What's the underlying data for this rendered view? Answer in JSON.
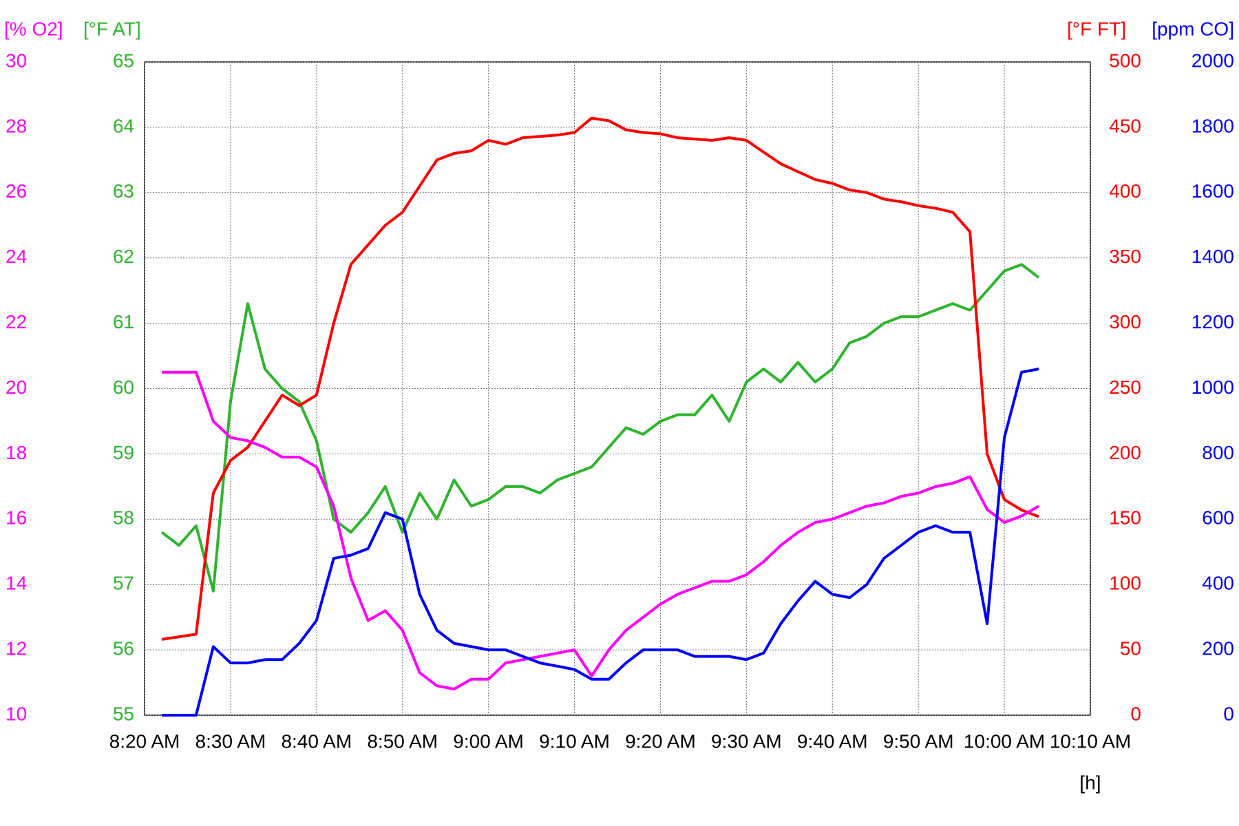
{
  "chart_data": {
    "type": "line",
    "x_axis_label": "[h]",
    "xlim": [
      "8:20 AM",
      "10:10 AM"
    ],
    "xticks": [
      "8:20 AM",
      "8:30 AM",
      "8:40 AM",
      "8:50 AM",
      "9:00 AM",
      "9:10 AM",
      "9:20 AM",
      "9:30 AM",
      "9:40 AM",
      "9:50 AM",
      "10:00 AM",
      "10:10 AM"
    ],
    "grid": true,
    "y_axes": [
      {
        "label": "[% O2]",
        "color": "#ff00ff",
        "ylim": [
          10,
          30
        ],
        "yticks": [
          10,
          12,
          14,
          16,
          18,
          20,
          22,
          24,
          26,
          28,
          30
        ]
      },
      {
        "label": "[°F AT]",
        "color": "#2db52d",
        "ylim": [
          55,
          65
        ],
        "yticks": [
          55,
          56,
          57,
          58,
          59,
          60,
          61,
          62,
          63,
          64,
          65
        ]
      },
      {
        "label": "[°F FT]",
        "color": "#ff0000",
        "ylim": [
          0,
          500
        ],
        "yticks": [
          0,
          50,
          100,
          150,
          200,
          250,
          300,
          350,
          400,
          450,
          500
        ]
      },
      {
        "label": "[ppm CO]",
        "color": "#0000ff",
        "ylim": [
          0,
          2000
        ],
        "yticks": [
          0,
          200,
          400,
          600,
          800,
          1000,
          1200,
          1400,
          1600,
          1800,
          2000
        ]
      }
    ],
    "x": [
      "8:22 AM",
      "8:24 AM",
      "8:26 AM",
      "8:28 AM",
      "8:30 AM",
      "8:32 AM",
      "8:34 AM",
      "8:36 AM",
      "8:38 AM",
      "8:40 AM",
      "8:42 AM",
      "8:44 AM",
      "8:46 AM",
      "8:48 AM",
      "8:50 AM",
      "8:52 AM",
      "8:54 AM",
      "8:56 AM",
      "8:58 AM",
      "9:00 AM",
      "9:02 AM",
      "9:04 AM",
      "9:06 AM",
      "9:08 AM",
      "9:10 AM",
      "9:12 AM",
      "9:14 AM",
      "9:16 AM",
      "9:18 AM",
      "9:20 AM",
      "9:22 AM",
      "9:24 AM",
      "9:26 AM",
      "9:28 AM",
      "9:30 AM",
      "9:32 AM",
      "9:34 AM",
      "9:36 AM",
      "9:38 AM",
      "9:40 AM",
      "9:42 AM",
      "9:44 AM",
      "9:46 AM",
      "9:48 AM",
      "9:50 AM",
      "9:52 AM",
      "9:54 AM",
      "9:56 AM",
      "9:58 AM",
      "10:00 AM",
      "10:02 AM",
      "10:04 AM"
    ],
    "series": [
      {
        "color": "#2db52d",
        "axis": 1,
        "values": [
          57.8,
          57.6,
          57.9,
          56.9,
          59.8,
          61.3,
          60.3,
          60.0,
          59.8,
          59.2,
          58.0,
          57.8,
          58.1,
          58.5,
          57.8,
          58.4,
          58.0,
          58.6,
          58.2,
          58.3,
          58.5,
          58.5,
          58.4,
          58.6,
          58.7,
          58.8,
          59.1,
          59.4,
          59.3,
          59.5,
          59.6,
          59.6,
          59.9,
          59.5,
          60.1,
          60.3,
          60.1,
          60.4,
          60.1,
          60.3,
          60.7,
          60.8,
          61.0,
          61.1,
          61.1,
          61.2,
          61.3,
          61.2,
          61.5,
          61.8,
          61.9,
          61.7
        ]
      },
      {
        "color": "#ff0000",
        "axis": 2,
        "values": [
          58,
          60,
          62,
          170,
          195,
          205,
          225,
          245,
          237,
          245,
          300,
          345,
          360,
          375,
          385,
          405,
          425,
          430,
          432,
          440,
          437,
          442,
          443,
          444,
          446,
          457,
          455,
          448,
          446,
          445,
          442,
          441,
          440,
          442,
          440,
          431,
          422,
          416,
          410,
          407,
          402,
          400,
          395,
          393,
          390,
          388,
          385,
          370,
          200,
          165,
          157,
          152
        ]
      },
      {
        "color": "#ff00ff",
        "axis": 0,
        "values": [
          20.5,
          20.5,
          20.5,
          19.0,
          18.5,
          18.4,
          18.2,
          17.9,
          17.9,
          17.6,
          16.4,
          14.2,
          12.9,
          13.2,
          12.6,
          11.3,
          10.9,
          10.8,
          11.1,
          11.1,
          11.6,
          11.7,
          11.8,
          11.9,
          12.0,
          11.2,
          12.0,
          12.6,
          13.0,
          13.4,
          13.7,
          13.9,
          14.1,
          14.1,
          14.3,
          14.7,
          15.2,
          15.6,
          15.9,
          16.0,
          16.2,
          16.4,
          16.5,
          16.7,
          16.8,
          17.0,
          17.1,
          17.3,
          16.3,
          15.9,
          16.1,
          16.4
        ]
      },
      {
        "color": "#0000ff",
        "axis": 3,
        "values": [
          0,
          0,
          0,
          210,
          160,
          160,
          170,
          170,
          220,
          290,
          480,
          490,
          510,
          620,
          600,
          370,
          260,
          220,
          210,
          200,
          200,
          180,
          160,
          150,
          140,
          110,
          110,
          160,
          200,
          200,
          200,
          180,
          180,
          180,
          170,
          190,
          280,
          350,
          410,
          370,
          360,
          400,
          480,
          520,
          560,
          580,
          560,
          560,
          280,
          850,
          1050,
          1060
        ]
      }
    ]
  }
}
